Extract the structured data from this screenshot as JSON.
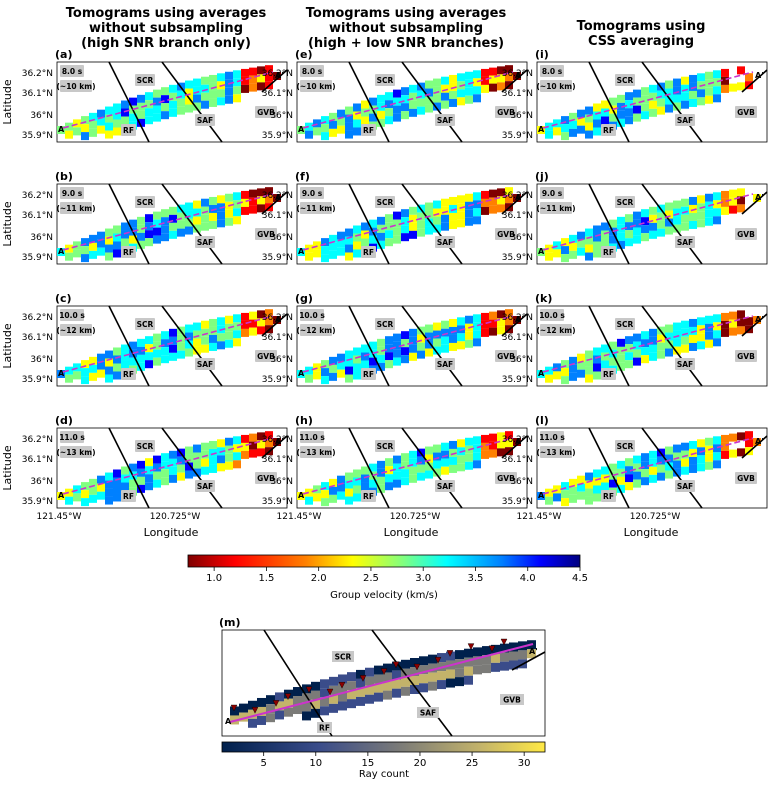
{
  "column_titles": [
    [
      "Tomograms using averages",
      "without subsampling",
      "(high SNR branch only)"
    ],
    [
      "Tomograms using averages",
      "without subsampling",
      "(high + low SNR branches)"
    ],
    [
      "Tomograms using",
      "CSS averaging"
    ]
  ],
  "panels": [
    {
      "letter": "(a)",
      "period": "8.0 s",
      "depth": "(~10 km)"
    },
    {
      "letter": "(b)",
      "period": "9.0 s",
      "depth": "(~11 km)"
    },
    {
      "letter": "(c)",
      "period": "10.0 s",
      "depth": "(~12 km)"
    },
    {
      "letter": "(d)",
      "period": "11.0 s",
      "depth": "(~13 km)"
    },
    {
      "letter": "(e)",
      "period": "8.0 s",
      "depth": "(~10 km)"
    },
    {
      "letter": "(f)",
      "period": "9.0 s",
      "depth": "(~11 km)"
    },
    {
      "letter": "(g)",
      "period": "10.0 s",
      "depth": "(~12 km)"
    },
    {
      "letter": "(h)",
      "period": "11.0 s",
      "depth": "(~13 km)"
    },
    {
      "letter": "(i)",
      "period": "8.0 s",
      "depth": "(~10 km)"
    },
    {
      "letter": "(j)",
      "period": "9.0 s",
      "depth": "(~11 km)"
    },
    {
      "letter": "(k)",
      "period": "10.0 s",
      "depth": "(~12 km)"
    },
    {
      "letter": "(l)",
      "period": "11.0 s",
      "depth": "(~13 km)"
    }
  ],
  "map_labels": {
    "scr": "SCR",
    "saf": "SAF",
    "rf": "RF",
    "gvb": "GVB",
    "a": "A",
    "a_prime": "A'"
  },
  "axes": {
    "lat_label": "Latitude",
    "lon_label": "Longitude",
    "lat_ticks": [
      "36.2°N",
      "36.1°N",
      "36°N",
      "35.9°N"
    ],
    "lon_ticks": [
      "121.45°W",
      "120.725°W"
    ]
  },
  "velocity_colorbar": {
    "label": "Group velocity (km/s)",
    "ticks": [
      "1.0",
      "1.5",
      "2.0",
      "2.5",
      "3.0",
      "3.5",
      "4.0",
      "4.5"
    ]
  },
  "ray_panel": {
    "letter": "(m)"
  },
  "ray_colorbar": {
    "label": "Ray count",
    "ticks": [
      "5",
      "10",
      "15",
      "20",
      "25",
      "30"
    ]
  },
  "colors": {
    "jet": [
      "#7f0000",
      "#ff0000",
      "#ff8000",
      "#ffff00",
      "#80ff80",
      "#00ffff",
      "#0080ff",
      "#0000ff",
      "#00007f"
    ],
    "ray": [
      "#00204c",
      "#3a4c8a",
      "#7b7b78",
      "#c3b36a",
      "#ffe945"
    ],
    "profile": "#cc33cc"
  }
}
